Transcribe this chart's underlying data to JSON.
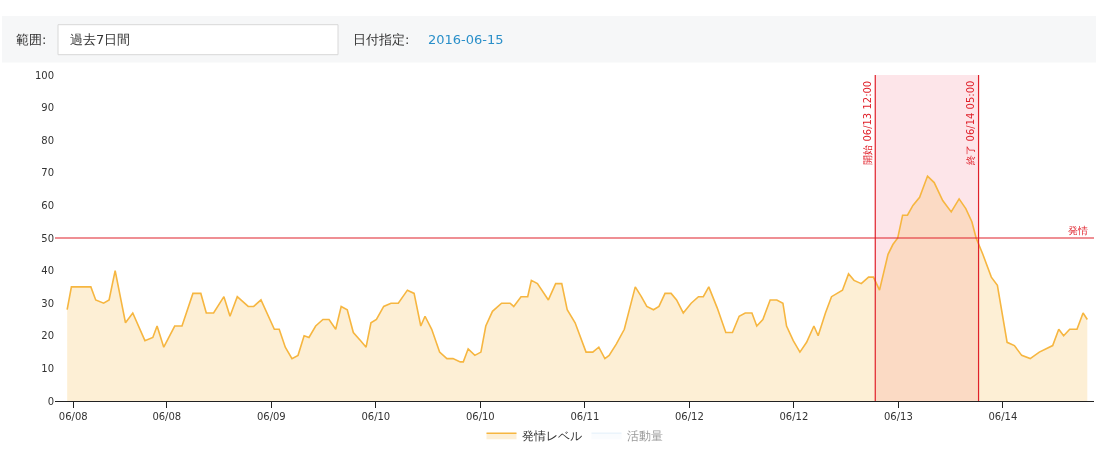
{
  "chart_data": {
    "type": "area",
    "annotations": [
      "範囲:",
      "過去7日間",
      "日付指定:",
      "2016-06-15"
    ],
    "xlim": [
      "2016-06-07T21:00",
      "2016-06-15T00:00"
    ],
    "xticks": [
      {
        "value": "2016-06-08T00:00",
        "label": "06/08"
      },
      {
        "value": "2016-06-08T15:24",
        "label": "06/08"
      },
      {
        "value": "2016-06-09T08:36",
        "label": "06/09"
      },
      {
        "value": "2016-06-10T01:48",
        "label": "06/10"
      },
      {
        "value": "2016-06-10T19:00",
        "label": "06/10"
      },
      {
        "value": "2016-06-11T12:12",
        "label": "06/11"
      },
      {
        "value": "2016-06-12T05:24",
        "label": "06/12"
      },
      {
        "value": "2016-06-12T22:36",
        "label": "06/12"
      },
      {
        "value": "2016-06-13T15:48",
        "label": "06/13"
      },
      {
        "value": "2016-06-14T09:00",
        "label": "06/14"
      }
    ],
    "ylim": [
      0,
      100
    ],
    "yticks": [
      0,
      10,
      20,
      30,
      40,
      50,
      60,
      70,
      80,
      90,
      100
    ],
    "grid": false,
    "legend": "bottom",
    "marker": "none",
    "line_style": "solid",
    "ref_lines": [
      {
        "axis": "y",
        "value": 50,
        "label": "発情",
        "color": "#e0202a"
      },
      {
        "axis": "x",
        "value": "2016-06-13T12:00",
        "label": "開始 06/13 12:00",
        "color": "#e0202a"
      },
      {
        "axis": "x",
        "value": "2016-06-14T05:00",
        "label": "終了 06/14 05:00",
        "color": "#e0202a"
      }
    ],
    "bands": [
      {
        "axis": "x",
        "from": "2016-06-13T12:00",
        "to": "2016-06-14T05:00",
        "label": null,
        "color": "#fcd3da"
      }
    ],
    "series": [
      {
        "name": "発情レベル",
        "color": "#f6b640",
        "x": [
          "2016-06-07T23:00",
          "2016-06-07T23:42",
          "2016-06-08T01:30",
          "2016-06-08T02:54",
          "2016-06-08T03:42",
          "2016-06-08T05:00",
          "2016-06-08T05:54",
          "2016-06-08T06:54",
          "2016-06-08T08:36",
          "2016-06-08T09:48",
          "2016-06-08T11:48",
          "2016-06-08T13:06",
          "2016-06-08T13:48",
          "2016-06-08T14:54",
          "2016-06-08T16:42",
          "2016-06-08T17:54",
          "2016-06-08T19:42",
          "2016-06-08T21:00",
          "2016-06-08T21:54",
          "2016-06-08T23:06",
          "2016-06-09T00:48",
          "2016-06-09T01:48",
          "2016-06-09T03:00",
          "2016-06-09T04:48",
          "2016-06-09T05:42",
          "2016-06-09T06:54",
          "2016-06-09T09:06",
          "2016-06-09T09:54",
          "2016-06-09T10:54",
          "2016-06-09T12:00",
          "2016-06-09T13:00",
          "2016-06-09T14:00",
          "2016-06-09T14:48",
          "2016-06-09T15:54",
          "2016-06-09T17:06",
          "2016-06-09T18:06",
          "2016-06-09T19:12",
          "2016-06-09T20:06",
          "2016-06-09T21:06",
          "2016-06-09T22:06",
          "2016-06-09T23:18",
          "2016-06-10T00:12",
          "2016-06-10T01:00",
          "2016-06-10T01:54",
          "2016-06-10T03:06",
          "2016-06-10T04:18",
          "2016-06-10T05:30",
          "2016-06-10T07:00",
          "2016-06-10T08:06",
          "2016-06-10T09:12",
          "2016-06-10T09:54",
          "2016-06-10T11:00",
          "2016-06-10T12:18",
          "2016-06-10T13:30",
          "2016-06-10T14:30",
          "2016-06-10T15:42",
          "2016-06-10T16:12",
          "2016-06-10T17:00",
          "2016-06-10T18:06",
          "2016-06-10T19:06",
          "2016-06-10T19:54",
          "2016-06-10T21:00",
          "2016-06-10T22:30",
          "2016-06-10T23:54",
          "2016-06-11T00:30",
          "2016-06-11T01:42",
          "2016-06-11T02:48",
          "2016-06-11T03:24",
          "2016-06-11T04:24",
          "2016-06-11T06:12",
          "2016-06-11T07:24",
          "2016-06-11T08:24",
          "2016-06-11T09:18",
          "2016-06-11T10:36",
          "2016-06-11T12:24",
          "2016-06-11T13:30",
          "2016-06-11T14:30",
          "2016-06-11T15:30",
          "2016-06-11T16:12",
          "2016-06-11T17:24",
          "2016-06-11T18:42",
          "2016-06-11T20:30",
          "2016-06-11T21:30",
          "2016-06-11T22:24",
          "2016-06-11T23:30",
          "2016-06-12T00:24",
          "2016-06-12T01:24",
          "2016-06-12T02:24",
          "2016-06-12T03:18",
          "2016-06-12T04:24",
          "2016-06-12T05:42",
          "2016-06-12T06:54",
          "2016-06-12T07:42",
          "2016-06-12T08:36",
          "2016-06-12T10:00",
          "2016-06-12T11:24",
          "2016-06-12T12:30",
          "2016-06-12T13:36",
          "2016-06-12T14:36",
          "2016-06-12T15:42",
          "2016-06-12T16:30",
          "2016-06-12T17:30",
          "2016-06-12T18:42",
          "2016-06-12T19:48",
          "2016-06-12T20:48",
          "2016-06-12T21:24",
          "2016-06-12T22:30",
          "2016-06-12T23:36",
          "2016-06-13T00:42",
          "2016-06-13T01:54",
          "2016-06-13T02:36",
          "2016-06-13T03:48",
          "2016-06-13T04:48",
          "2016-06-13T06:36",
          "2016-06-13T07:36",
          "2016-06-13T08:30",
          "2016-06-13T09:42",
          "2016-06-13T10:54",
          "2016-06-13T11:42",
          "2016-06-13T12:42",
          "2016-06-13T14:06",
          "2016-06-13T14:54",
          "2016-06-13T15:42",
          "2016-06-13T16:30",
          "2016-06-13T17:18",
          "2016-06-13T18:12",
          "2016-06-13T19:18",
          "2016-06-13T20:36",
          "2016-06-13T21:42",
          "2016-06-13T23:06",
          "2016-06-14T00:30",
          "2016-06-14T01:48",
          "2016-06-14T02:54",
          "2016-06-14T03:54",
          "2016-06-14T04:36",
          "2016-06-14T05:42",
          "2016-06-14T07:06",
          "2016-06-14T08:06",
          "2016-06-14T09:42",
          "2016-06-14T10:54",
          "2016-06-14T12:06",
          "2016-06-14T13:30",
          "2016-06-14T15:00",
          "2016-06-14T17:12",
          "2016-06-14T18:12",
          "2016-06-14T19:00",
          "2016-06-14T20:00",
          "2016-06-14T21:12",
          "2016-06-14T22:12",
          "2016-06-14T22:54"
        ],
        "values": [
          28,
          35,
          35,
          35,
          31,
          30,
          31,
          40,
          24,
          27,
          18.5,
          19.5,
          23,
          16.5,
          23,
          23,
          33,
          33,
          27,
          27,
          32,
          26,
          32,
          29,
          29,
          31,
          22,
          22,
          16.5,
          13,
          14,
          20,
          19.5,
          23,
          25,
          25,
          22,
          29,
          28,
          21,
          18.5,
          16.5,
          24,
          25,
          29,
          30,
          30,
          34,
          33,
          23,
          26,
          22,
          15,
          13,
          13,
          12,
          12,
          16,
          14,
          15,
          23,
          27.5,
          30,
          30,
          29,
          32,
          32,
          37,
          36,
          31,
          36,
          36,
          28,
          24,
          15,
          15,
          16.5,
          13,
          14,
          17.5,
          22,
          35,
          32,
          29,
          28,
          29,
          33,
          33,
          31,
          27,
          30,
          32,
          32,
          35,
          28.5,
          21,
          21,
          26,
          27,
          27,
          23,
          25,
          31,
          31,
          30,
          23,
          18.5,
          15,
          18,
          23,
          20,
          27,
          32,
          34,
          39,
          37,
          36,
          38,
          38,
          34,
          45,
          48,
          50,
          57,
          57,
          60,
          62.5,
          69,
          67,
          61.5,
          58,
          62,
          59,
          55,
          50,
          45,
          38,
          35.5,
          18,
          17,
          14,
          13,
          15,
          17,
          22,
          20,
          22,
          22,
          27,
          25
        ]
      },
      {
        "name": "活動量",
        "color": "#d8eaf8"
      }
    ]
  }
}
